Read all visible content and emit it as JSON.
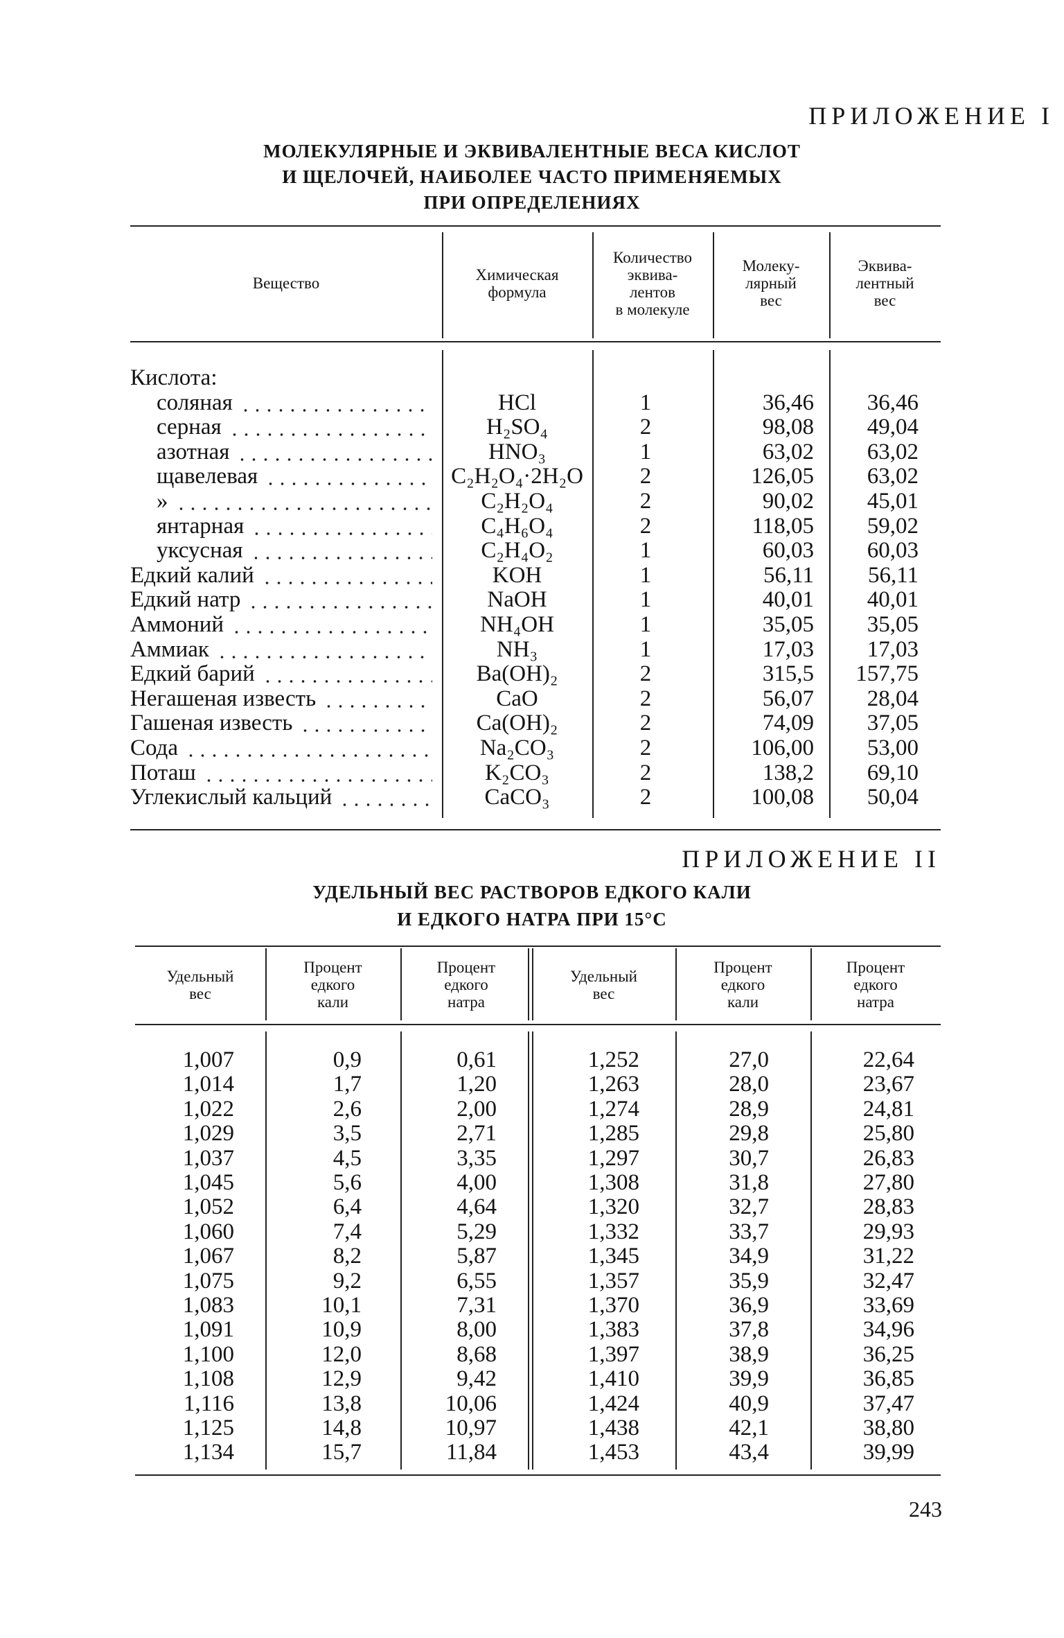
{
  "appendix1": {
    "heading": "ПРИЛОЖЕНИЕ I",
    "title": [
      "МОЛЕКУЛЯРНЫЕ И ЭКВИВАЛЕНТНЫЕ ВЕСА КИСЛОТ",
      "И ЩЕЛОЧЕЙ, НАИБОЛЕЕ ЧАСТО ПРИМЕНЯЕМЫХ",
      "ПРИ ОПРЕДЕЛЕНИЯХ"
    ],
    "headers": [
      [
        "Вещество"
      ],
      [
        "Химическая",
        "формула"
      ],
      [
        "Количество",
        "эквива-",
        "лентов",
        "в молекуле"
      ],
      [
        "Молеку-",
        "лярный",
        "вес"
      ],
      [
        "Эквива-",
        "лентный",
        "вес"
      ]
    ],
    "group": {
      "label": "Кислота:",
      "rows": [
        [
          "соляная",
          "HCl",
          "1",
          "36,46",
          "36,46"
        ],
        [
          "серная",
          "H₂SO₄",
          "2",
          "98,08",
          "49,04"
        ],
        [
          "азотная",
          "HNO₃",
          "1",
          "63,02",
          "63,02"
        ],
        [
          "щавелевая",
          "C₂H₂O₄·2H₂O",
          "2",
          "126,05",
          "63,02"
        ],
        [
          "»",
          "C₂H₂O₄",
          "2",
          "90,02",
          "45,01"
        ],
        [
          "янтарная",
          "C₄H₆O₄",
          "2",
          "118,05",
          "59,02"
        ],
        [
          "уксусная",
          "C₂H₄O₂",
          "1",
          "60,03",
          "60,03"
        ]
      ]
    },
    "rows": [
      [
        "Едкий калий",
        "KOH",
        "1",
        "56,11",
        "56,11"
      ],
      [
        "Едкий натр",
        "NaOH",
        "1",
        "40,01",
        "40,01"
      ],
      [
        "Аммоний",
        "NH₄OH",
        "1",
        "35,05",
        "35,05"
      ],
      [
        "Аммиак",
        "NH₃",
        "1",
        "17,03",
        "17,03"
      ],
      [
        "Едкий барий",
        "Ba(OH)₂",
        "2",
        "315,5",
        "157,75"
      ],
      [
        "Негашеная известь",
        "CaO",
        "2",
        "56,07",
        "28,04"
      ],
      [
        "Гашеная известь",
        "Ca(OH)₂",
        "2",
        "74,09",
        "37,05"
      ],
      [
        "Сода",
        "Na₂CO₃",
        "2",
        "106,00",
        "53,00"
      ],
      [
        "Поташ",
        "K₂CO₃",
        "2",
        "138,2",
        "69,10"
      ],
      [
        "Углекислый кальций",
        "CaCO₃",
        "2",
        "100,08",
        "50,04"
      ]
    ]
  },
  "appendix2": {
    "heading": "ПРИЛОЖЕНИЕ II",
    "title": [
      "УДЕЛЬНЫЙ ВЕС РАСТВОРОВ ЕДКОГО КАЛИ",
      "И ЕДКОГО НАТРА ПРИ 15°С"
    ],
    "headers": [
      [
        "Удельный",
        "вес"
      ],
      [
        "Процент",
        "едкого",
        "кали"
      ],
      [
        "Процент",
        "едкого",
        "натра"
      ],
      [
        "Удельный",
        "вес"
      ],
      [
        "Процент",
        "едкого",
        "кали"
      ],
      [
        "Процент",
        "едкого",
        "натра"
      ]
    ],
    "rows": [
      [
        "1,007",
        "0,9",
        "0,61",
        "1,252",
        "27,0",
        "22,64"
      ],
      [
        "1,014",
        "1,7",
        "1,20",
        "1,263",
        "28,0",
        "23,67"
      ],
      [
        "1,022",
        "2,6",
        "2,00",
        "1,274",
        "28,9",
        "24,81"
      ],
      [
        "1,029",
        "3,5",
        "2,71",
        "1,285",
        "29,8",
        "25,80"
      ],
      [
        "1,037",
        "4,5",
        "3,35",
        "1,297",
        "30,7",
        "26,83"
      ],
      [
        "1,045",
        "5,6",
        "4,00",
        "1,308",
        "31,8",
        "27,80"
      ],
      [
        "1,052",
        "6,4",
        "4,64",
        "1,320",
        "32,7",
        "28,83"
      ],
      [
        "1,060",
        "7,4",
        "5,29",
        "1,332",
        "33,7",
        "29,93"
      ],
      [
        "1,067",
        "8,2",
        "5,87",
        "1,345",
        "34,9",
        "31,22"
      ],
      [
        "1,075",
        "9,2",
        "6,55",
        "1,357",
        "35,9",
        "32,47"
      ],
      [
        "1,083",
        "10,1",
        "7,31",
        "1,370",
        "36,9",
        "33,69"
      ],
      [
        "1,091",
        "10,9",
        "8,00",
        "1,383",
        "37,8",
        "34,96"
      ],
      [
        "1,100",
        "12,0",
        "8,68",
        "1,397",
        "38,9",
        "36,25"
      ],
      [
        "1,108",
        "12,9",
        "9,42",
        "1,410",
        "39,9",
        "36,85"
      ],
      [
        "1,116",
        "13,8",
        "10,06",
        "1,424",
        "40,9",
        "37,47"
      ],
      [
        "1,125",
        "14,8",
        "10,97",
        "1,438",
        "42,1",
        "38,80"
      ],
      [
        "1,134",
        "15,7",
        "11,84",
        "1,453",
        "43,4",
        "39,99"
      ]
    ]
  },
  "page_number": "243"
}
